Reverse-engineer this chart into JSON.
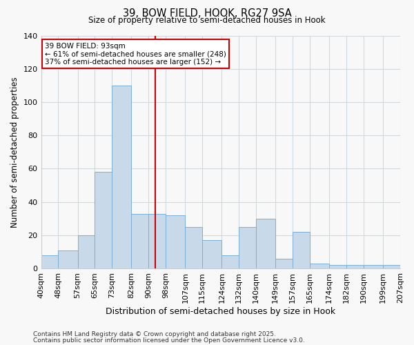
{
  "title1": "39, BOW FIELD, HOOK, RG27 9SA",
  "title2": "Size of property relative to semi-detached houses in Hook",
  "xlabel": "Distribution of semi-detached houses by size in Hook",
  "ylabel": "Number of semi-detached properties",
  "bin_labels": [
    "40sqm",
    "48sqm",
    "57sqm",
    "65sqm",
    "73sqm",
    "82sqm",
    "90sqm",
    "98sqm",
    "107sqm",
    "115sqm",
    "124sqm",
    "132sqm",
    "140sqm",
    "149sqm",
    "157sqm",
    "165sqm",
    "174sqm",
    "182sqm",
    "190sqm",
    "199sqm",
    "207sqm"
  ],
  "bar_values": [
    8,
    11,
    20,
    58,
    110,
    33,
    33,
    32,
    25,
    17,
    8,
    25,
    30,
    6,
    22,
    3,
    2,
    2,
    2,
    2
  ],
  "bar_edges": [
    40,
    48,
    57,
    65,
    73,
    82,
    90,
    98,
    107,
    115,
    124,
    132,
    140,
    149,
    157,
    165,
    174,
    182,
    190,
    199,
    207
  ],
  "bar_color": "#c8daea",
  "bar_edgecolor": "#7bafd4",
  "property_line_x": 93,
  "property_line_color": "#cc0000",
  "annotation_title": "39 BOW FIELD: 93sqm",
  "annotation_line1": "← 61% of semi-detached houses are smaller (248)",
  "annotation_line2": "37% of semi-detached houses are larger (152) →",
  "annotation_box_edgecolor": "#cc0000",
  "ylim": [
    0,
    140
  ],
  "yticks": [
    0,
    20,
    40,
    60,
    80,
    100,
    120,
    140
  ],
  "grid_color": "#d0d8e0",
  "background_color": "#f8f8f8",
  "footer1": "Contains HM Land Registry data © Crown copyright and database right 2025.",
  "footer2": "Contains public sector information licensed under the Open Government Licence v3.0."
}
